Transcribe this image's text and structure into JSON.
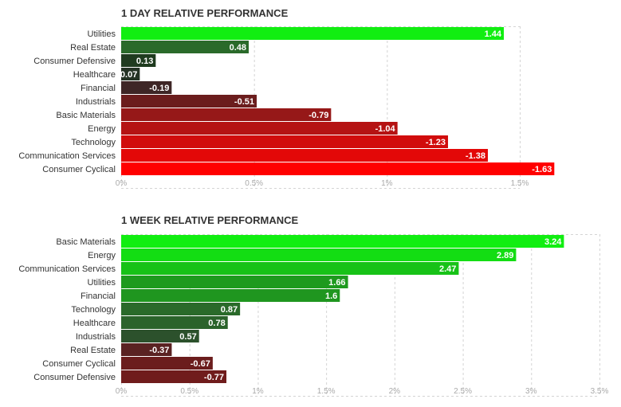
{
  "chart_data": [
    {
      "type": "bar",
      "orientation": "horizontal",
      "title": "1 DAY RELATIVE PERFORMANCE",
      "categories": [
        "Utilities",
        "Real Estate",
        "Consumer Defensive",
        "Healthcare",
        "Financial",
        "Industrials",
        "Basic Materials",
        "Energy",
        "Technology",
        "Communication Services",
        "Consumer Cyclical"
      ],
      "values": [
        1.44,
        0.48,
        0.13,
        0.07,
        -0.19,
        -0.51,
        -0.79,
        -1.04,
        -1.23,
        -1.38,
        -1.63
      ],
      "value_labels": [
        "1.44",
        "0.48",
        "0.13",
        "0.07",
        "-0.19",
        "-0.51",
        "-0.79",
        "-1.04",
        "-1.23",
        "-1.38",
        "-1.63"
      ],
      "colors": [
        "#11ee11",
        "#2a6a2a",
        "#1f3b1f",
        "#243324",
        "#3e2626",
        "#6b1d1d",
        "#961818",
        "#b51313",
        "#d10c0c",
        "#e30808",
        "#ff0000"
      ],
      "xticks": [
        "0%",
        "0.5%",
        "1%",
        "1.5%"
      ],
      "xlim": [
        0,
        1.5
      ],
      "bar_length": "absolute value",
      "grid": true
    },
    {
      "type": "bar",
      "orientation": "horizontal",
      "title": "1 WEEK RELATIVE PERFORMANCE",
      "categories": [
        "Basic Materials",
        "Energy",
        "Communication Services",
        "Utilities",
        "Financial",
        "Technology",
        "Healthcare",
        "Industrials",
        "Real Estate",
        "Consumer Cyclical",
        "Consumer Defensive"
      ],
      "values": [
        3.24,
        2.89,
        2.47,
        1.66,
        1.6,
        0.87,
        0.78,
        0.57,
        -0.37,
        -0.67,
        -0.77
      ],
      "value_labels": [
        "3.24",
        "2.89",
        "2.47",
        "1.66",
        "1.6",
        "0.87",
        "0.78",
        "0.57",
        "-0.37",
        "-0.67",
        "-0.77"
      ],
      "colors": [
        "#11ee11",
        "#13dd13",
        "#17c217",
        "#1e9a1e",
        "#1f961f",
        "#2a6a2a",
        "#2b632b",
        "#2c512c",
        "#5a2222",
        "#6b1d1d",
        "#701c1c"
      ],
      "xticks": [
        "0%",
        "0.5%",
        "1%",
        "1.5%",
        "2%",
        "2.5%",
        "3%",
        "3.5%"
      ],
      "xlim": [
        0,
        3.5
      ],
      "bar_length": "absolute value",
      "grid": true
    }
  ]
}
